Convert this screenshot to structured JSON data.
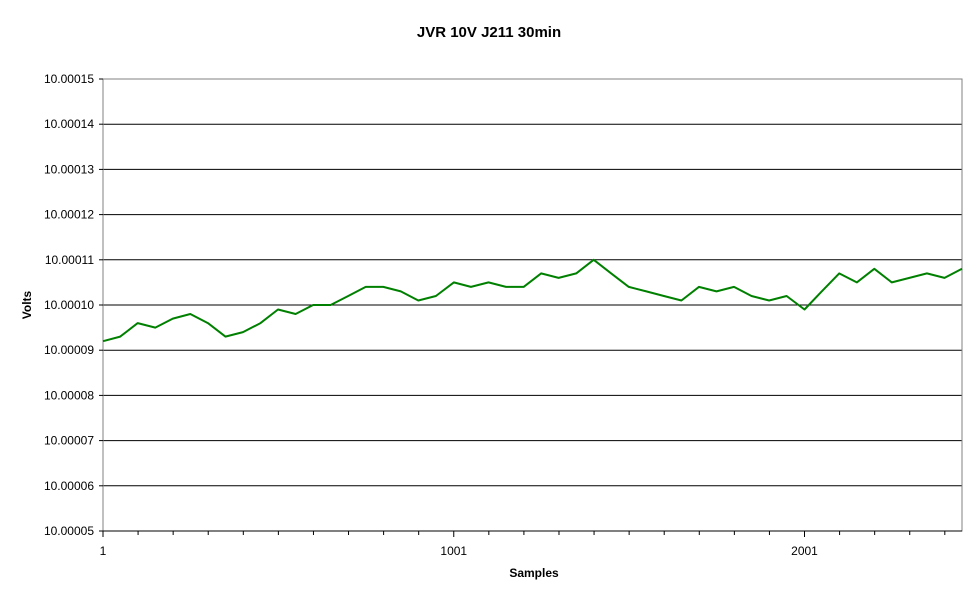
{
  "chart_data": {
    "type": "line",
    "title": "JVR 10V J211 30min",
    "xlabel": "Samples",
    "ylabel": "Volts",
    "xlim": [
      1,
      2450
    ],
    "ylim": [
      10.00005,
      10.00015
    ],
    "x_ticks": [
      1,
      1001,
      2001
    ],
    "y_ticks": [
      10.00005,
      10.00006,
      10.00007,
      10.00008,
      10.00009,
      10.0001,
      10.00011,
      10.00012,
      10.00013,
      10.00014,
      10.00015
    ],
    "y_tick_labels": [
      "10.00005",
      "10.00006",
      "10.00007",
      "10.00008",
      "10.00009",
      "10.00010",
      "10.00011",
      "10.00012",
      "10.00013",
      "10.00014",
      "10.00015"
    ],
    "grid": true,
    "legend": "none",
    "series": [
      {
        "color": "#008000",
        "x": [
          1,
          50,
          100,
          150,
          200,
          250,
          300,
          350,
          400,
          450,
          500,
          550,
          600,
          650,
          700,
          750,
          800,
          850,
          900,
          950,
          1001,
          1050,
          1100,
          1150,
          1200,
          1250,
          1300,
          1350,
          1400,
          1450,
          1500,
          1550,
          1600,
          1650,
          1700,
          1750,
          1800,
          1850,
          1900,
          1950,
          2001,
          2050,
          2100,
          2150,
          2200,
          2250,
          2300,
          2350,
          2400,
          2450
        ],
        "y": [
          10.000092,
          10.000093,
          10.000096,
          10.000095,
          10.000097,
          10.000098,
          10.000096,
          10.000093,
          10.000094,
          10.000096,
          10.000099,
          10.000098,
          10.0001,
          10.0001,
          10.000102,
          10.000104,
          10.000104,
          10.000103,
          10.000101,
          10.000102,
          10.000105,
          10.000104,
          10.000105,
          10.000104,
          10.000104,
          10.000107,
          10.000106,
          10.000107,
          10.00011,
          10.000107,
          10.000104,
          10.000103,
          10.000102,
          10.000101,
          10.000104,
          10.000103,
          10.000104,
          10.000102,
          10.000101,
          10.000102,
          10.000099,
          10.000103,
          10.000107,
          10.000105,
          10.000108,
          10.000105,
          10.000106,
          10.000107,
          10.000106,
          10.000108
        ]
      }
    ]
  }
}
